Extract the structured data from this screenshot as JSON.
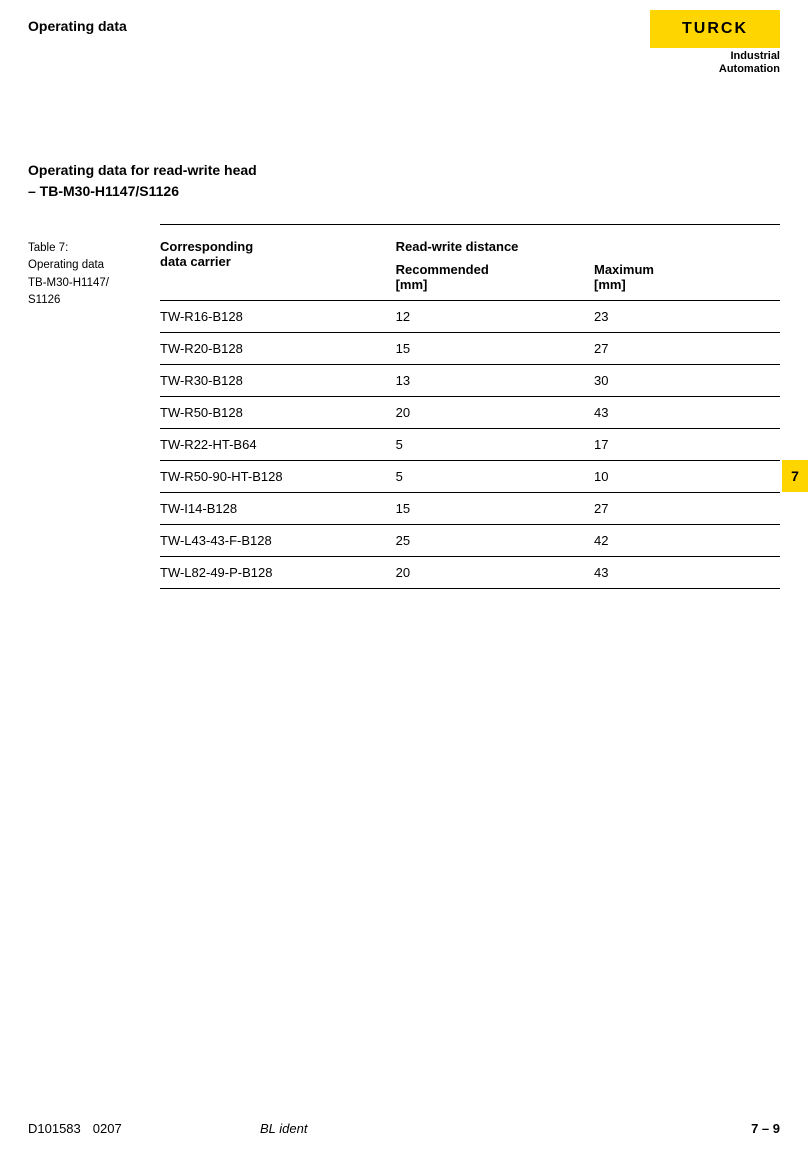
{
  "colors": {
    "brand_yellow": "#ffd500",
    "text": "#000000",
    "background": "#ffffff",
    "rule": "#000000"
  },
  "header": {
    "section_title": "Operating data",
    "logo_text": "TURCK",
    "logo_sub_line1": "Industrial",
    "logo_sub_line2": "Automation"
  },
  "subheader": {
    "line1": "Operating data for read-write head",
    "line2": "– TB-M30-H1147/S1126"
  },
  "caption": {
    "prefix": "Table 7:",
    "line1": "Operating data",
    "line2": "TB-M30-H1147/",
    "line3": "S1126"
  },
  "table": {
    "columns": {
      "c1_header_line1": "Corresponding",
      "c1_header_line2": "data carrier",
      "super_header": "Read-write distance",
      "c2_header_line1": "Recommended",
      "c2_header_line2": "[mm]",
      "c3_header_line1": "Maximum",
      "c3_header_line2": "[mm]"
    },
    "rows": [
      {
        "carrier": "TW-R16-B128",
        "rec": "12",
        "max": "23"
      },
      {
        "carrier": "TW-R20-B128",
        "rec": "15",
        "max": "27"
      },
      {
        "carrier": "TW-R30-B128",
        "rec": "13",
        "max": "30"
      },
      {
        "carrier": "TW-R50-B128",
        "rec": "20",
        "max": "43"
      },
      {
        "carrier": "TW-R22-HT-B64",
        "rec": "5",
        "max": "17"
      },
      {
        "carrier": "TW-R50-90-HT-B128",
        "rec": "5",
        "max": "10"
      },
      {
        "carrier": "TW-I14-B128",
        "rec": "15",
        "max": "27"
      },
      {
        "carrier": "TW-L43-43-F-B128",
        "rec": "25",
        "max": "42"
      },
      {
        "carrier": "TW-L82-49-P-B128",
        "rec": "20",
        "max": "43"
      }
    ],
    "col_widths": [
      "38%",
      "32%",
      "30%"
    ]
  },
  "page_tab": "7",
  "footer": {
    "doc_id": "D101583",
    "revision": "0207",
    "center": "BL ident",
    "page": "7 – 9"
  }
}
